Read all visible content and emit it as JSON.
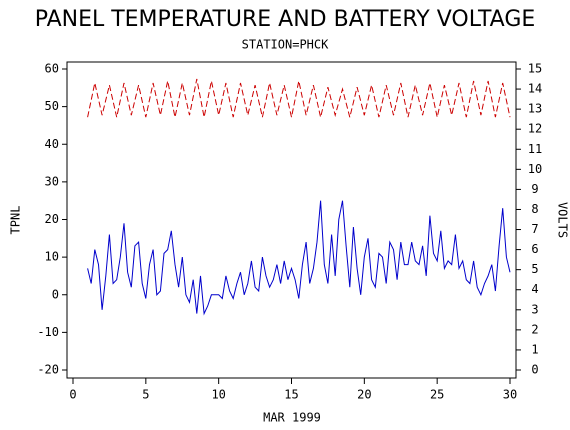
{
  "chart_data": {
    "type": "line",
    "title": "PANEL TEMPERATURE AND BATTERY VOLTAGE",
    "subtitle": "STATION=PHCK",
    "x_label": "MAR 1999",
    "y_label": "TPNL",
    "y2_label": "VOLTS",
    "xlim": [
      0,
      30
    ],
    "xticks": [
      0,
      5,
      10,
      15,
      20,
      25,
      30
    ],
    "ylim": [
      -20,
      60
    ],
    "yticks": [
      -20,
      -10,
      0,
      10,
      20,
      30,
      40,
      50,
      60
    ],
    "y2lim": [
      0,
      15
    ],
    "y2ticks": [
      0,
      1,
      2,
      3,
      4,
      5,
      6,
      7,
      8,
      9,
      10,
      11,
      12,
      13,
      14,
      15
    ],
    "series": [
      {
        "name": "TPNL",
        "color": "#0000cc",
        "dash": "none",
        "x": [
          1,
          1.25,
          1.5,
          1.75,
          2,
          2.25,
          2.5,
          2.75,
          3,
          3.25,
          3.5,
          3.75,
          4,
          4.25,
          4.5,
          4.75,
          5,
          5.25,
          5.5,
          5.75,
          6,
          6.25,
          6.5,
          6.75,
          7,
          7.25,
          7.5,
          7.75,
          8,
          8.25,
          8.5,
          8.75,
          9,
          9.25,
          9.5,
          9.75,
          10,
          10.25,
          10.5,
          10.75,
          11,
          11.25,
          11.5,
          11.75,
          12,
          12.25,
          12.5,
          12.75,
          13,
          13.25,
          13.5,
          13.75,
          14,
          14.25,
          14.5,
          14.75,
          15,
          15.25,
          15.5,
          15.75,
          16,
          16.25,
          16.5,
          16.75,
          17,
          17.25,
          17.5,
          17.75,
          18,
          18.25,
          18.5,
          18.75,
          19,
          19.25,
          19.5,
          19.75,
          20,
          20.25,
          20.5,
          20.75,
          21,
          21.25,
          21.5,
          21.75,
          22,
          22.25,
          22.5,
          22.75,
          23,
          23.25,
          23.5,
          23.75,
          24,
          24.25,
          24.5,
          24.75,
          25,
          25.25,
          25.5,
          25.75,
          26,
          26.25,
          26.5,
          26.75,
          27,
          27.25,
          27.5,
          27.75,
          28,
          28.25,
          28.5,
          28.75,
          29,
          29.25,
          29.5,
          29.75,
          30
        ],
        "values": [
          7,
          3,
          12,
          8,
          -4,
          5,
          16,
          3,
          4,
          10,
          19,
          6,
          2,
          13,
          14,
          3,
          -1,
          8,
          12,
          0,
          1,
          11,
          12,
          17,
          8,
          2,
          10,
          0,
          -2,
          4,
          -5,
          5,
          -5,
          -3,
          0,
          0,
          0,
          -1,
          5,
          1,
          -1,
          3,
          6,
          0,
          3,
          9,
          2,
          1,
          10,
          5,
          2,
          4,
          8,
          3,
          9,
          4,
          7,
          4,
          -1,
          8,
          14,
          3,
          7,
          14,
          25,
          8,
          3,
          16,
          5,
          20,
          25,
          13,
          2,
          18,
          7,
          0,
          10,
          15,
          4,
          2,
          11,
          10,
          3,
          14,
          12,
          4,
          14,
          8,
          8,
          14,
          9,
          8,
          13,
          5,
          21,
          11,
          9,
          17,
          7,
          9,
          8,
          16,
          7,
          9,
          4,
          3,
          9,
          2,
          0,
          3,
          5,
          8,
          1,
          13,
          23,
          10,
          6
        ]
      },
      {
        "name": "VOLTS",
        "color": "#cc0000",
        "dash": "6 3",
        "axis": "y2",
        "x": [
          1,
          1.5,
          2,
          2.5,
          3,
          3.5,
          4,
          4.5,
          5,
          5.5,
          6,
          6.5,
          7,
          7.5,
          8,
          8.5,
          9,
          9.5,
          10,
          10.5,
          11,
          11.5,
          12,
          12.5,
          13,
          13.5,
          14,
          14.5,
          15,
          15.5,
          16,
          16.5,
          17,
          17.5,
          18,
          18.5,
          19,
          19.5,
          20,
          20.5,
          21,
          21.5,
          22,
          22.5,
          23,
          23.5,
          24,
          24.5,
          25,
          25.5,
          26,
          26.5,
          27,
          27.5,
          28,
          28.5,
          29,
          29.5,
          30
        ],
        "values": [
          12.6,
          14.3,
          12.7,
          14.2,
          12.6,
          14.3,
          12.7,
          14.2,
          12.6,
          14.3,
          12.7,
          14.4,
          12.6,
          14.3,
          12.7,
          14.5,
          12.6,
          14.4,
          12.7,
          14.3,
          12.6,
          14.3,
          12.7,
          14.2,
          12.6,
          14.3,
          12.7,
          14.2,
          12.6,
          14.4,
          12.7,
          14.2,
          12.6,
          14.1,
          12.7,
          14.0,
          12.6,
          14.1,
          12.7,
          14.2,
          12.6,
          14.2,
          12.7,
          14.3,
          12.6,
          14.2,
          12.7,
          14.3,
          12.6,
          14.2,
          12.7,
          14.3,
          12.6,
          14.4,
          12.7,
          14.4,
          12.6,
          14.3,
          12.6
        ]
      }
    ]
  }
}
